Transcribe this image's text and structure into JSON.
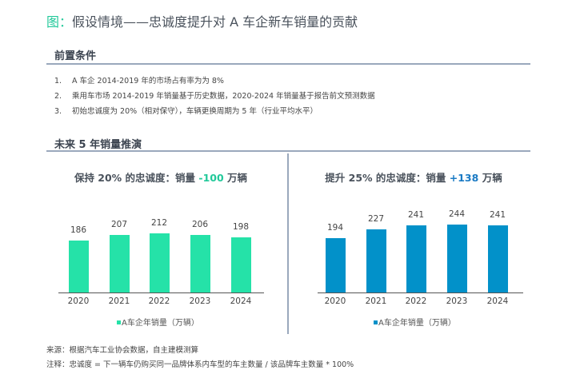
{
  "title": {
    "prefix": "图：",
    "text": "假设情境——忠诚度提升对 A 车企新车销量的贡献"
  },
  "section1": {
    "heading": "前置条件",
    "items": [
      {
        "num": "1.",
        "text": "A 车企 2014-2019 年的市场占有率为为 8%"
      },
      {
        "num": "2.",
        "text": "乘用车市场 2014-2019 年销量基于历史数据，2020-2024 年销量基于报告前文预测数据"
      },
      {
        "num": "3.",
        "text": "初始忠诚度为 20%（相对保守），车辆更换周期为 5 年（行业平均水平）"
      }
    ]
  },
  "section2": {
    "heading": "未来 5 年销量推演"
  },
  "chart_data": [
    {
      "type": "bar",
      "title_pre": "保持 20% 的忠诚度：销量 ",
      "title_value": "-100",
      "title_post": " 万辆",
      "categories": [
        "2020",
        "2021",
        "2022",
        "2023",
        "2024"
      ],
      "values": [
        186,
        207,
        212,
        206,
        198
      ],
      "legend": "A车企年销量（万辆）",
      "color": "#25e2a8",
      "value_color": "#22c99a",
      "ylim": [
        0,
        300
      ]
    },
    {
      "type": "bar",
      "title_pre": "提升 25% 的忠诚度：销量 ",
      "title_value": "+138",
      "title_post": " 万辆",
      "categories": [
        "2020",
        "2021",
        "2022",
        "2023",
        "2024"
      ],
      "values": [
        194,
        227,
        241,
        244,
        241
      ],
      "legend": "A车企年销量（万辆）",
      "color": "#0291c9",
      "value_color": "#1a7ac4",
      "ylim": [
        0,
        300
      ]
    }
  ],
  "footer": {
    "source": "来源：根据汽车工业协会数据，自主建模测算",
    "note": "注释：忠诚度 = 下一辆车仍购买同一品牌体系内车型的车主数量 / 该品牌车主数量 * 100%"
  }
}
